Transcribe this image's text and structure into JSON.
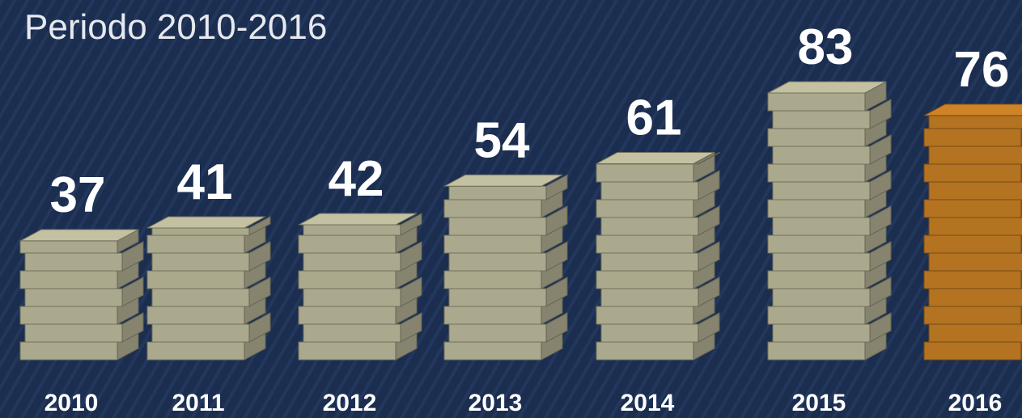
{
  "chart_data": {
    "type": "pictorial-bar",
    "subtitle": "Periodo 2010-2016",
    "categories": [
      "2010",
      "2011",
      "2012",
      "2013",
      "2014",
      "2015",
      "2016"
    ],
    "values": [
      37,
      41,
      42,
      54,
      61,
      83,
      76
    ],
    "colors": [
      "#bab899",
      "#bab899",
      "#bab899",
      "#bab899",
      "#bab899",
      "#bab899",
      "#c47d24"
    ]
  }
}
